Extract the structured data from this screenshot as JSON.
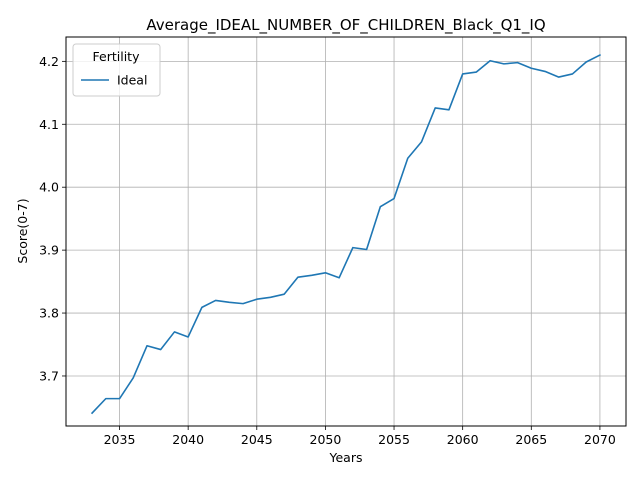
{
  "chart_data": {
    "type": "line",
    "title": "Average_IDEAL_NUMBER_OF_CHILDREN_Black_Q1_IQ",
    "xlabel": "Years",
    "ylabel": "Score(0-7)",
    "xlim": [
      2031.1,
      2071.9
    ],
    "ylim": [
      3.6205,
      4.2387
    ],
    "xticks": [
      2035,
      2040,
      2045,
      2050,
      2055,
      2060,
      2065,
      2070
    ],
    "yticks": [
      3.7,
      3.8,
      3.9,
      4.0,
      4.1,
      4.2
    ],
    "xtick_labels": [
      "2035",
      "2040",
      "2045",
      "2050",
      "2055",
      "2060",
      "2065",
      "2070"
    ],
    "ytick_labels": [
      "3.7",
      "3.8",
      "3.9",
      "4.0",
      "4.1",
      "4.2"
    ],
    "grid": true,
    "legend": {
      "title": "Fertility",
      "placement": "top-left"
    },
    "series": [
      {
        "name": "Ideal",
        "color": "#1f77b4",
        "x": [
          2033,
          2034,
          2035,
          2036,
          2037,
          2038,
          2039,
          2040,
          2041,
          2042,
          2043,
          2044,
          2045,
          2046,
          2047,
          2048,
          2049,
          2050,
          2051,
          2052,
          2053,
          2054,
          2055,
          2056,
          2057,
          2058,
          2059,
          2060,
          2061,
          2062,
          2063,
          2064,
          2065,
          2066,
          2067,
          2068,
          2069,
          2070
        ],
        "y": [
          3.641,
          3.664,
          3.664,
          3.697,
          3.748,
          3.742,
          3.77,
          3.762,
          3.809,
          3.82,
          3.817,
          3.815,
          3.822,
          3.825,
          3.83,
          3.857,
          3.86,
          3.864,
          3.856,
          3.904,
          3.901,
          3.969,
          3.982,
          4.046,
          4.072,
          4.126,
          4.123,
          4.18,
          4.183,
          4.201,
          4.196,
          4.198,
          4.189,
          4.184,
          4.175,
          4.18,
          4.199,
          4.21
        ]
      }
    ]
  }
}
